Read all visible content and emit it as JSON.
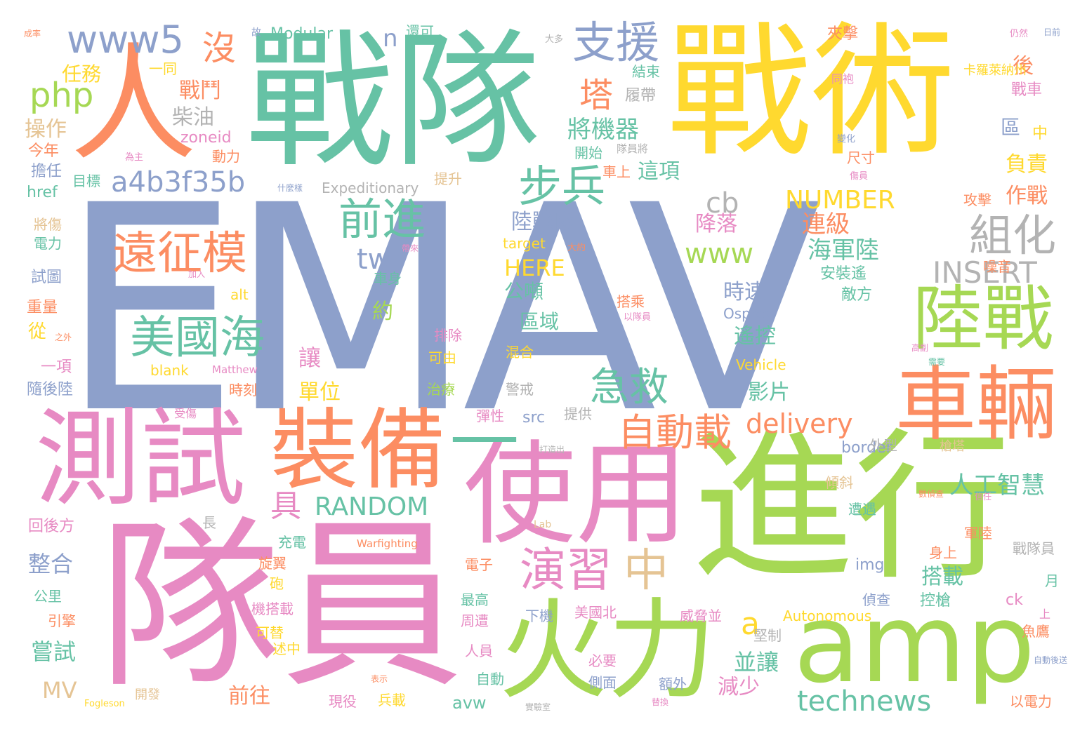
{
  "palette": {
    "blue": "#8da0cb",
    "green": "#66c2a5",
    "orange": "#fc8d62",
    "pink": "#e78ac3",
    "lime": "#a6d854",
    "yellow": "#ffd92f",
    "tan": "#e5c494",
    "gray": "#b3b3b3"
  },
  "words": [
    {
      "text": "EMAV",
      "color": "blue"
    },
    {
      "text": "隊員",
      "color": "pink"
    },
    {
      "text": "戰術",
      "color": "yellow"
    },
    {
      "text": "戰隊",
      "color": "green"
    },
    {
      "text": "進行",
      "color": "lime"
    },
    {
      "text": "人",
      "color": "orange"
    },
    {
      "text": "測試",
      "color": "pink"
    },
    {
      "text": "使用",
      "color": "pink"
    },
    {
      "text": "裝備",
      "color": "orange"
    },
    {
      "text": "火力",
      "color": "lime"
    },
    {
      "text": "amp",
      "color": "lime"
    },
    {
      "text": "車輛",
      "color": "orange"
    },
    {
      "text": "陸戰",
      "color": "lime"
    },
    {
      "text": "—",
      "color": "green"
    },
    {
      "text": "遠征模",
      "color": "orange"
    },
    {
      "text": "美國海",
      "color": "green"
    },
    {
      "text": "前進",
      "color": "green"
    },
    {
      "text": "步兵",
      "color": "green"
    },
    {
      "text": "支援",
      "color": "blue"
    },
    {
      "text": "www5",
      "color": "blue"
    },
    {
      "text": "a4b3f35b",
      "color": "blue"
    },
    {
      "text": "急救",
      "color": "green"
    },
    {
      "text": "自動載",
      "color": "orange"
    },
    {
      "text": "演習",
      "color": "pink"
    },
    {
      "text": "中",
      "color": "tan"
    },
    {
      "text": "組化",
      "color": "gray"
    },
    {
      "text": "INSERT",
      "color": "gray"
    },
    {
      "text": "technews",
      "color": "green"
    },
    {
      "text": "delivery",
      "color": "orange"
    },
    {
      "text": "RANDOM",
      "color": "green"
    },
    {
      "text": "NUMBER",
      "color": "yellow"
    },
    {
      "text": "人工智慧",
      "color": "green"
    },
    {
      "text": "塔",
      "color": "orange"
    },
    {
      "text": "沒",
      "color": "orange"
    },
    {
      "text": "php",
      "color": "lime"
    },
    {
      "text": "將機器",
      "color": "green"
    },
    {
      "text": "海軍陸",
      "color": "green"
    },
    {
      "text": "www",
      "color": "lime"
    },
    {
      "text": "cb",
      "color": "gray"
    },
    {
      "text": "tw",
      "color": "blue"
    },
    {
      "text": "HERE",
      "color": "yellow"
    },
    {
      "text": "a",
      "color": "yellow"
    },
    {
      "text": "n",
      "color": "blue"
    },
    {
      "text": "具",
      "color": "pink"
    },
    {
      "text": "陸戰隊",
      "color": "blue"
    },
    {
      "text": "戰鬥",
      "color": "orange"
    },
    {
      "text": "柴油",
      "color": "gray"
    },
    {
      "text": "任務",
      "color": "yellow"
    },
    {
      "text": "操作",
      "color": "tan"
    },
    {
      "text": "負責",
      "color": "yellow"
    },
    {
      "text": "作戰",
      "color": "orange"
    },
    {
      "text": "後",
      "color": "orange"
    },
    {
      "text": "連級",
      "color": "orange"
    },
    {
      "text": "降落",
      "color": "pink"
    },
    {
      "text": "這項",
      "color": "green"
    },
    {
      "text": "時速",
      "color": "blue"
    },
    {
      "text": "遙控",
      "color": "green"
    },
    {
      "text": "影片",
      "color": "green"
    },
    {
      "text": "公噸",
      "color": "green"
    },
    {
      "text": "區域",
      "color": "green"
    },
    {
      "text": "約",
      "color": "lime"
    },
    {
      "text": "讓",
      "color": "pink"
    },
    {
      "text": "單位",
      "color": "yellow"
    },
    {
      "text": "並讓",
      "color": "green"
    },
    {
      "text": "減少",
      "color": "pink"
    },
    {
      "text": "前往",
      "color": "orange"
    },
    {
      "text": "整合",
      "color": "blue"
    },
    {
      "text": "嘗試",
      "color": "green"
    },
    {
      "text": "搭載",
      "color": "green"
    },
    {
      "text": "MV",
      "color": "tan"
    },
    {
      "text": "從",
      "color": "yellow"
    },
    {
      "text": "avw",
      "color": "green"
    },
    {
      "text": "border",
      "color": "blue"
    },
    {
      "text": "img",
      "color": "blue"
    },
    {
      "text": "ck",
      "color": "pink"
    },
    {
      "text": "target",
      "color": "yellow"
    },
    {
      "text": "zoneid",
      "color": "pink"
    },
    {
      "text": "href",
      "color": "green"
    },
    {
      "text": "alt",
      "color": "yellow"
    },
    {
      "text": "src",
      "color": "blue"
    },
    {
      "text": "blank",
      "color": "yellow"
    },
    {
      "text": "Osprey",
      "color": "blue"
    },
    {
      "text": "Modular",
      "color": "green"
    },
    {
      "text": "Expeditionary",
      "color": "gray"
    },
    {
      "text": "Vehicle",
      "color": "yellow"
    },
    {
      "text": "Autonomous",
      "color": "yellow"
    },
    {
      "text": "Matthew",
      "color": "pink"
    },
    {
      "text": "Lab",
      "color": "tan"
    },
    {
      "text": "Warfighting",
      "color": "orange"
    },
    {
      "text": "Fogleson",
      "color": "yellow"
    },
    {
      "text": "安裝遙",
      "color": "green"
    },
    {
      "text": "敵方",
      "color": "green"
    },
    {
      "text": "噪音",
      "color": "orange"
    },
    {
      "text": "攻擊",
      "color": "orange"
    },
    {
      "text": "尺寸",
      "color": "orange"
    },
    {
      "text": "區",
      "color": "blue"
    },
    {
      "text": "中",
      "color": "yellow"
    },
    {
      "text": "戰車",
      "color": "pink"
    },
    {
      "text": "卡羅萊納州",
      "color": "yellow"
    },
    {
      "text": "夾擊",
      "color": "orange"
    },
    {
      "text": "一同",
      "color": "yellow"
    },
    {
      "text": "今年",
      "color": "orange"
    },
    {
      "text": "擔任",
      "color": "blue"
    },
    {
      "text": "目標",
      "color": "green"
    },
    {
      "text": "動力",
      "color": "orange"
    },
    {
      "text": "開始",
      "color": "green"
    },
    {
      "text": "車上",
      "color": "orange"
    },
    {
      "text": "結束",
      "color": "green"
    },
    {
      "text": "履帶",
      "color": "gray"
    },
    {
      "text": "提升",
      "color": "tan"
    },
    {
      "text": "電力",
      "color": "green"
    },
    {
      "text": "將傷",
      "color": "tan"
    },
    {
      "text": "試圖",
      "color": "blue"
    },
    {
      "text": "重量",
      "color": "orange"
    },
    {
      "text": "一項",
      "color": "pink"
    },
    {
      "text": "隨後陸",
      "color": "blue"
    },
    {
      "text": "時刻",
      "color": "orange"
    },
    {
      "text": "車身",
      "color": "green"
    },
    {
      "text": "搭乘",
      "color": "orange"
    },
    {
      "text": "排除",
      "color": "pink"
    },
    {
      "text": "可由",
      "color": "yellow"
    },
    {
      "text": "混合",
      "color": "yellow"
    },
    {
      "text": "治療",
      "color": "lime"
    },
    {
      "text": "警戒",
      "color": "gray"
    },
    {
      "text": "彈性",
      "color": "pink"
    },
    {
      "text": "提供",
      "color": "gray"
    },
    {
      "text": "外型",
      "color": "gray"
    },
    {
      "text": "槍塔",
      "color": "tan"
    },
    {
      "text": "傾斜",
      "color": "tan"
    },
    {
      "text": "遭遇",
      "color": "green"
    },
    {
      "text": "軍陸",
      "color": "orange"
    },
    {
      "text": "身上",
      "color": "orange"
    },
    {
      "text": "戰隊員",
      "color": "gray"
    },
    {
      "text": "回後方",
      "color": "pink"
    },
    {
      "text": "長",
      "color": "gray"
    },
    {
      "text": "充電",
      "color": "green"
    },
    {
      "text": "旋翼",
      "color": "orange"
    },
    {
      "text": "砲",
      "color": "yellow"
    },
    {
      "text": "電子",
      "color": "orange"
    },
    {
      "text": "最高",
      "color": "green"
    },
    {
      "text": "周遭",
      "color": "pink"
    },
    {
      "text": "下機",
      "color": "blue"
    },
    {
      "text": "美國北",
      "color": "pink"
    },
    {
      "text": "威脅並",
      "color": "pink"
    },
    {
      "text": "堅制",
      "color": "gray"
    },
    {
      "text": "偵查",
      "color": "blue"
    },
    {
      "text": "控槍",
      "color": "green"
    },
    {
      "text": "月",
      "color": "green"
    },
    {
      "text": "魚鷹",
      "color": "orange"
    },
    {
      "text": "上",
      "color": "pink"
    },
    {
      "text": "公里",
      "color": "green"
    },
    {
      "text": "引擎",
      "color": "orange"
    },
    {
      "text": "機搭載",
      "color": "pink"
    },
    {
      "text": "可替",
      "color": "yellow"
    },
    {
      "text": "述中",
      "color": "yellow"
    },
    {
      "text": "人員",
      "color": "pink"
    },
    {
      "text": "自動",
      "color": "green"
    },
    {
      "text": "必要",
      "color": "pink"
    },
    {
      "text": "側面",
      "color": "blue"
    },
    {
      "text": "額外",
      "color": "blue"
    },
    {
      "text": "現役",
      "color": "pink"
    },
    {
      "text": "兵載",
      "color": "yellow"
    },
    {
      "text": "開發",
      "color": "tan"
    },
    {
      "text": "以電力",
      "color": "orange"
    },
    {
      "text": "成率",
      "color": "orange"
    },
    {
      "text": "故",
      "color": "blue"
    },
    {
      "text": "還可",
      "color": "green"
    },
    {
      "text": "大多",
      "color": "gray"
    },
    {
      "text": "仍然",
      "color": "pink"
    },
    {
      "text": "日前",
      "color": "blue"
    },
    {
      "text": "同袍",
      "color": "pink"
    },
    {
      "text": "變化",
      "color": "blue"
    },
    {
      "text": "隊員將",
      "color": "gray"
    },
    {
      "text": "傷員",
      "color": "pink"
    },
    {
      "text": "為主",
      "color": "pink"
    },
    {
      "text": "什麼樣",
      "color": "blue"
    },
    {
      "text": "加入",
      "color": "pink"
    },
    {
      "text": "之外",
      "color": "orange"
    },
    {
      "text": "帶來",
      "color": "pink"
    },
    {
      "text": "大約",
      "color": "orange"
    },
    {
      "text": "以隊員",
      "color": "pink"
    },
    {
      "text": "受傷",
      "color": "pink"
    },
    {
      "text": "表示",
      "color": "orange"
    },
    {
      "text": "打造出",
      "color": "gray"
    },
    {
      "text": "實驗室",
      "color": "gray"
    },
    {
      "text": "替換",
      "color": "pink"
    },
    {
      "text": "數偵查",
      "color": "orange"
    },
    {
      "text": "信任",
      "color": "pink"
    },
    {
      "text": "高副",
      "color": "pink"
    },
    {
      "text": "需要",
      "color": "green"
    },
    {
      "text": "自動後送",
      "color": "blue"
    }
  ]
}
